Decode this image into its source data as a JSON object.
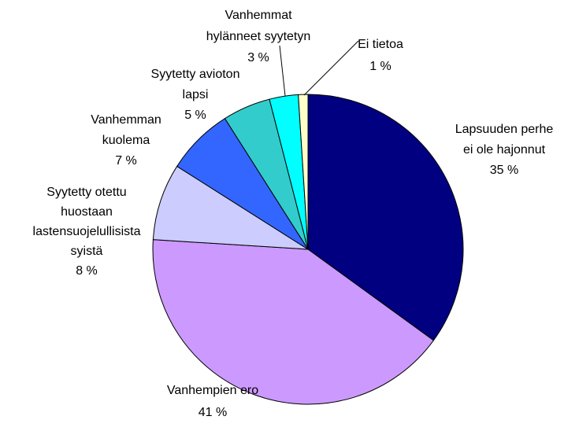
{
  "chart_data": {
    "type": "pie",
    "categories": [
      [
        "Lapsuuden perhe",
        "ei ole hajonnut"
      ],
      [
        "Vanhempien ero"
      ],
      [
        "Syytetty otettu",
        "huostaan",
        "lastensuojelullisista",
        "syistä"
      ],
      [
        "Vanhemman",
        "kuolema"
      ],
      [
        "Syytetty avioton",
        "lapsi"
      ],
      [
        "Vanhemmat",
        "hylänneet syytetyn"
      ],
      [
        "Ei tietoa"
      ]
    ],
    "values": [
      35,
      41,
      8,
      7,
      5,
      3,
      1
    ],
    "value_labels": [
      "35 %",
      "41 %",
      "8 %",
      "7 %",
      "5 %",
      "3 %",
      "1 %"
    ],
    "colors": [
      "#000080",
      "#CC99FF",
      "#CCCCFF",
      "#3366FF",
      "#33CCCC",
      "#00FFFF",
      "#FFFFCC"
    ]
  }
}
